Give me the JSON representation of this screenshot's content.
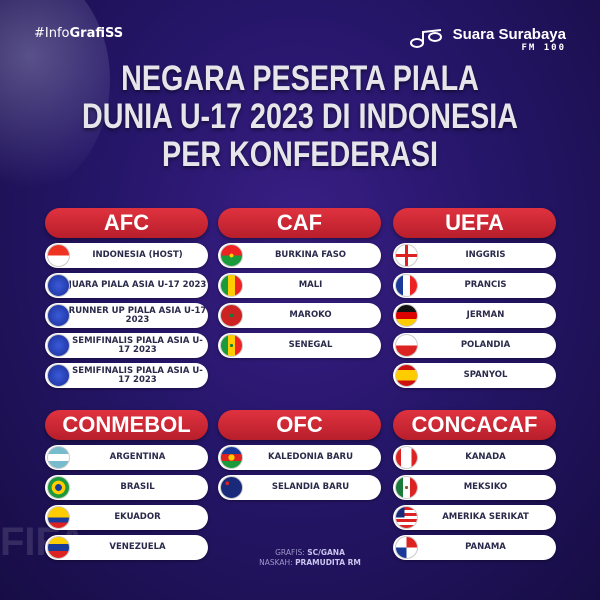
{
  "hashtag": {
    "prefix": "#Info",
    "bold": "GrafiSS"
  },
  "brand": {
    "name": "Suara Surabaya",
    "sub": "FM 100"
  },
  "title": [
    "NEGARA PESERTA PIALA",
    "DUNIA U-17 2023 DI INDONESIA",
    "PER KONFEDERASI"
  ],
  "confederations": [
    {
      "name": "AFC",
      "teams": [
        {
          "label": "INDONESIA (HOST)",
          "flag": "indonesia"
        },
        {
          "label": "JUARA PIALA ASIA U-17 2023",
          "flag": "afc-logo"
        },
        {
          "label": "RUNNER UP PIALA ASIA U-17 2023",
          "flag": "afc-logo"
        },
        {
          "label": "SEMIFINALIS PIALA ASIA U-17 2023",
          "flag": "afc-logo"
        },
        {
          "label": "SEMIFINALIS PIALA ASIA U-17 2023",
          "flag": "afc-logo"
        }
      ]
    },
    {
      "name": "CAF",
      "teams": [
        {
          "label": "BURKINA FASO",
          "flag": "burkina-faso"
        },
        {
          "label": "MALI",
          "flag": "mali"
        },
        {
          "label": "MAROKO",
          "flag": "morocco"
        },
        {
          "label": "SENEGAL",
          "flag": "senegal"
        }
      ]
    },
    {
      "name": "UEFA",
      "teams": [
        {
          "label": "INGGRIS",
          "flag": "england"
        },
        {
          "label": "PRANCIS",
          "flag": "france"
        },
        {
          "label": "JERMAN",
          "flag": "germany"
        },
        {
          "label": "POLANDIA",
          "flag": "poland"
        },
        {
          "label": "SPANYOL",
          "flag": "spain"
        }
      ]
    },
    {
      "name": "CONMEBOL",
      "teams": [
        {
          "label": "ARGENTINA",
          "flag": "argentina"
        },
        {
          "label": "BRASIL",
          "flag": "brazil"
        },
        {
          "label": "EKUADOR",
          "flag": "ecuador"
        },
        {
          "label": "VENEZUELA",
          "flag": "venezuela"
        }
      ]
    },
    {
      "name": "OFC",
      "teams": [
        {
          "label": "KALEDONIA BARU",
          "flag": "new-caledonia"
        },
        {
          "label": "SELANDIA BARU",
          "flag": "new-zealand"
        }
      ]
    },
    {
      "name": "CONCACAF",
      "teams": [
        {
          "label": "KANADA",
          "flag": "canada"
        },
        {
          "label": "MEKSIKO",
          "flag": "mexico"
        },
        {
          "label": "AMERIKA SERIKAT",
          "flag": "usa"
        },
        {
          "label": "PANAMA",
          "flag": "panama"
        }
      ]
    }
  ],
  "credits": {
    "graphics_label": "GRAFIS:",
    "graphics": "SC/GANA",
    "text_label": "NASKAH:",
    "text": "PRAMUDITA RM"
  },
  "colors": {
    "background": "#26166a",
    "header": "#d42a37"
  }
}
